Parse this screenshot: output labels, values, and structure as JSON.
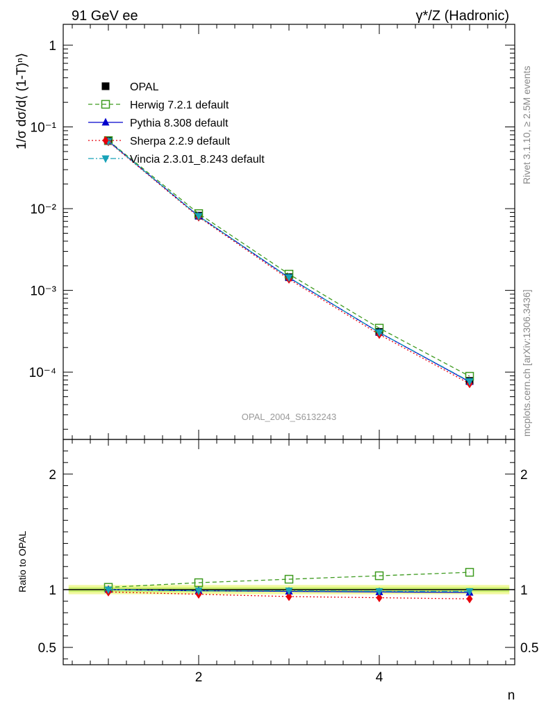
{
  "header": {
    "left": "91 GeV ee",
    "right": "γ*/Z (Hadronic)"
  },
  "side_text": {
    "rivet": "Rivet 3.1.10, ≥ 2.5M events",
    "mcplots": "mcplots.cern.ch [arXiv:1306.3436]"
  },
  "watermark": "OPAL_2004_S6132243",
  "chart_data": [
    {
      "type": "line",
      "panel": "main",
      "ylabel": "1/σ dσ/d⟨ (1-T)ⁿ⟩",
      "yscale": "log",
      "ylim": [
        1.5e-05,
        1.8
      ],
      "xlim": [
        0.5,
        5.5
      ],
      "y_tick_labels": [
        "1",
        "10⁻¹",
        "10⁻²",
        "10⁻³",
        "10⁻⁴"
      ],
      "x": [
        1,
        2,
        3,
        4,
        5
      ],
      "series": [
        {
          "name": "OPAL",
          "color": "#000000",
          "marker": "square-filled",
          "line": "none",
          "values": [
            0.067,
            0.0082,
            0.00145,
            0.00031,
            7.8e-05
          ]
        },
        {
          "name": "Herwig 7.2.1 default",
          "color": "#3d9a1e",
          "marker": "square-open",
          "line": "dashed",
          "values": [
            0.068,
            0.0087,
            0.00158,
            0.000345,
            8.9e-05
          ]
        },
        {
          "name": "Pythia 8.308 default",
          "color": "#0000cc",
          "marker": "triangle-up",
          "line": "solid",
          "values": [
            0.067,
            0.0081,
            0.00143,
            0.000305,
            7.6e-05
          ]
        },
        {
          "name": "Sherpa 2.2.9 default",
          "color": "#e8000b",
          "marker": "diamond",
          "line": "dotted",
          "values": [
            0.066,
            0.0079,
            0.00137,
            0.000289,
            7.2e-05
          ]
        },
        {
          "name": "Vincia 2.3.01_8.243 default",
          "color": "#17a2b8",
          "marker": "triangle-down",
          "line": "dashdot",
          "values": [
            0.067,
            0.0081,
            0.00144,
            0.000306,
            7.7e-05
          ]
        }
      ]
    },
    {
      "type": "line",
      "panel": "ratio",
      "xlabel": "n",
      "ylabel": "Ratio to OPAL",
      "ylim": [
        0.35,
        2.3
      ],
      "xlim": [
        0.5,
        5.5
      ],
      "y_tick_labels": [
        "2",
        "1",
        "0.5"
      ],
      "x_tick_labels": [
        "2",
        "4"
      ],
      "x": [
        1,
        2,
        3,
        4,
        5
      ],
      "band": {
        "inner": 0.02,
        "outer": 0.04
      },
      "series": [
        {
          "name": "Herwig 7.2.1 default",
          "values": [
            1.02,
            1.06,
            1.09,
            1.12,
            1.15
          ]
        },
        {
          "name": "Pythia 8.308 default",
          "values": [
            1.0,
            0.99,
            0.985,
            0.98,
            0.975
          ]
        },
        {
          "name": "Sherpa 2.2.9 default",
          "values": [
            0.98,
            0.96,
            0.94,
            0.93,
            0.92
          ]
        },
        {
          "name": "Vincia 2.3.01_8.243 default",
          "values": [
            1.0,
            0.99,
            0.99,
            0.985,
            0.985
          ]
        }
      ]
    }
  ]
}
